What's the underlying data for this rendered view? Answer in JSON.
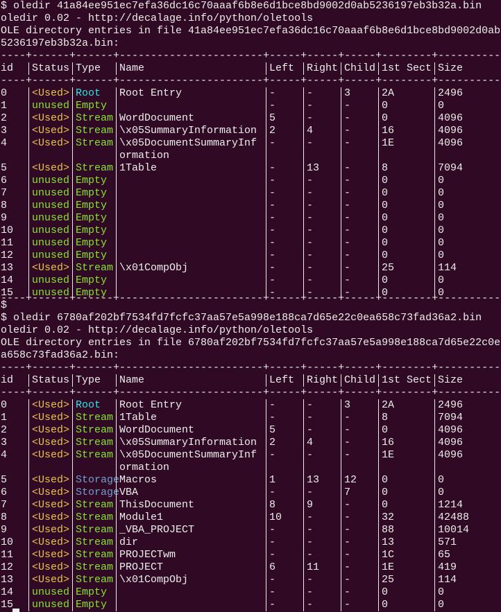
{
  "sessions": [
    {
      "lines": [
        "$ oledir 41a84ee951ec7efa36dc16c70aaaf6b8e6d1bce8bd9002d0ab5236197eb3b32a.bin",
        "oledir 0.02 - http://decalage.info/python/oletools",
        "OLE directory entries in file 41a84ee951ec7efa36dc16c70aaaf6b8e6d1bce8bd9002d0ab",
        "5236197eb3b32a.bin:"
      ],
      "border": "----+------+------+-----------------------+-----+-----+-----+--------+----------",
      "columns": [
        "id",
        "Status",
        "Type",
        "Name",
        "Left",
        "Right",
        "Child",
        "1st Sect",
        "Size"
      ],
      "colors": {
        "status": {
          "<Used>": "#e9c44a",
          "unused": "#8ae234"
        },
        "type": {
          "Root": "#34e2e2",
          "Stream": "#8ae234",
          "Empty": "#8ae234",
          "Storage": "#729fcf"
        }
      },
      "rows": [
        {
          "id": "0",
          "status": "<Used>",
          "type": "Root",
          "name": "Root Entry",
          "left": "-",
          "right": "-",
          "child": "3",
          "sect": "2A",
          "size": "2496"
        },
        {
          "id": "1",
          "status": "unused",
          "type": "Empty",
          "name": null,
          "left": "-",
          "right": "-",
          "child": "-",
          "sect": "0",
          "size": "0"
        },
        {
          "id": "2",
          "status": "<Used>",
          "type": "Stream",
          "name": "WordDocument",
          "left": "5",
          "right": "-",
          "child": "-",
          "sect": "0",
          "size": "4096"
        },
        {
          "id": "3",
          "status": "<Used>",
          "type": "Stream",
          "name": "\\x05SummaryInformation",
          "left": "2",
          "right": "4",
          "child": "-",
          "sect": "16",
          "size": "4096"
        },
        {
          "id": "4",
          "status": "<Used>",
          "type": "Stream",
          "name": "\\x05DocumentSummaryInf",
          "name_cont": "ormation",
          "left": "-",
          "right": "-",
          "child": "-",
          "sect": "1E",
          "size": "4096"
        },
        {
          "id": "5",
          "status": "<Used>",
          "type": "Stream",
          "name": "1Table",
          "left": "-",
          "right": "13",
          "child": "-",
          "sect": "8",
          "size": "7094"
        },
        {
          "id": "6",
          "status": "unused",
          "type": "Empty",
          "name": null,
          "left": "-",
          "right": "-",
          "child": "-",
          "sect": "0",
          "size": "0"
        },
        {
          "id": "7",
          "status": "unused",
          "type": "Empty",
          "name": null,
          "left": "-",
          "right": "-",
          "child": "-",
          "sect": "0",
          "size": "0"
        },
        {
          "id": "8",
          "status": "unused",
          "type": "Empty",
          "name": null,
          "left": "-",
          "right": "-",
          "child": "-",
          "sect": "0",
          "size": "0"
        },
        {
          "id": "9",
          "status": "unused",
          "type": "Empty",
          "name": null,
          "left": "-",
          "right": "-",
          "child": "-",
          "sect": "0",
          "size": "0"
        },
        {
          "id": "10",
          "status": "unused",
          "type": "Empty",
          "name": null,
          "left": "-",
          "right": "-",
          "child": "-",
          "sect": "0",
          "size": "0"
        },
        {
          "id": "11",
          "status": "unused",
          "type": "Empty",
          "name": null,
          "left": "-",
          "right": "-",
          "child": "-",
          "sect": "0",
          "size": "0"
        },
        {
          "id": "12",
          "status": "unused",
          "type": "Empty",
          "name": null,
          "left": "-",
          "right": "-",
          "child": "-",
          "sect": "0",
          "size": "0"
        },
        {
          "id": "13",
          "status": "<Used>",
          "type": "Stream",
          "name": "\\x01CompObj",
          "left": "-",
          "right": "-",
          "child": "-",
          "sect": "25",
          "size": "114"
        },
        {
          "id": "14",
          "status": "unused",
          "type": "Empty",
          "name": null,
          "left": "-",
          "right": "-",
          "child": "-",
          "sect": "0",
          "size": "0"
        },
        {
          "id": "15",
          "status": "unused",
          "type": "Empty",
          "name": null,
          "left": "-",
          "right": "-",
          "child": "-",
          "sect": "0",
          "size": "0"
        }
      ],
      "closing_border": true,
      "trailing": "$"
    },
    {
      "lines": [
        "$ oledir 6780af202bf7534fd7fcfc37aa57e5a998e188ca7d65e22c0ea658c73fad36a2.bin",
        "oledir 0.02 - http://decalage.info/python/oletools",
        "OLE directory entries in file 6780af202bf7534fd7fcfc37aa57e5a998e188ca7d65e22c0e",
        "a658c73fad36a2.bin:"
      ],
      "border": "----+------+------+-----------------------+-----+-----+-----+--------+----------",
      "columns": [
        "id",
        "Status",
        "Type",
        "Name",
        "Left",
        "Right",
        "Child",
        "1st Sect",
        "Size"
      ],
      "colors": {
        "status": {
          "<Used>": "#e9c44a",
          "unused": "#8ae234"
        },
        "type": {
          "Root": "#34e2e2",
          "Stream": "#8ae234",
          "Empty": "#8ae234",
          "Storage": "#729fcf"
        }
      },
      "rows": [
        {
          "id": "0",
          "status": "<Used>",
          "type": "Root",
          "name": "Root Entry",
          "left": "-",
          "right": "-",
          "child": "3",
          "sect": "2A",
          "size": "2496"
        },
        {
          "id": "1",
          "status": "<Used>",
          "type": "Stream",
          "name": "1Table",
          "left": "-",
          "right": "-",
          "child": "-",
          "sect": "8",
          "size": "7094"
        },
        {
          "id": "2",
          "status": "<Used>",
          "type": "Stream",
          "name": "WordDocument",
          "left": "5",
          "right": "-",
          "child": "-",
          "sect": "0",
          "size": "4096"
        },
        {
          "id": "3",
          "status": "<Used>",
          "type": "Stream",
          "name": "\\x05SummaryInformation",
          "left": "2",
          "right": "4",
          "child": "-",
          "sect": "16",
          "size": "4096"
        },
        {
          "id": "4",
          "status": "<Used>",
          "type": "Stream",
          "name": "\\x05DocumentSummaryInf",
          "name_cont": "ormation",
          "left": "-",
          "right": "-",
          "child": "-",
          "sect": "1E",
          "size": "4096"
        },
        {
          "id": "5",
          "status": "<Used>",
          "type": "Storage",
          "name": "Macros",
          "left": "1",
          "right": "13",
          "child": "12",
          "sect": "0",
          "size": "0"
        },
        {
          "id": "6",
          "status": "<Used>",
          "type": "Storage",
          "name": "VBA",
          "left": "-",
          "right": "-",
          "child": "7",
          "sect": "0",
          "size": "0"
        },
        {
          "id": "7",
          "status": "<Used>",
          "type": "Stream",
          "name": "ThisDocument",
          "left": "8",
          "right": "9",
          "child": "-",
          "sect": "0",
          "size": "1214"
        },
        {
          "id": "8",
          "status": "<Used>",
          "type": "Stream",
          "name": "Module1",
          "left": "10",
          "right": "-",
          "child": "-",
          "sect": "32",
          "size": "42488"
        },
        {
          "id": "9",
          "status": "<Used>",
          "type": "Stream",
          "name": "_VBA_PROJECT",
          "left": "-",
          "right": "-",
          "child": "-",
          "sect": "88",
          "size": "10014"
        },
        {
          "id": "10",
          "status": "<Used>",
          "type": "Stream",
          "name": "dir",
          "left": "-",
          "right": "-",
          "child": "-",
          "sect": "13",
          "size": "571"
        },
        {
          "id": "11",
          "status": "<Used>",
          "type": "Stream",
          "name": "PROJECTwm",
          "left": "-",
          "right": "-",
          "child": "-",
          "sect": "1C",
          "size": "65"
        },
        {
          "id": "12",
          "status": "<Used>",
          "type": "Stream",
          "name": "PROJECT",
          "left": "6",
          "right": "11",
          "child": "-",
          "sect": "1E",
          "size": "419"
        },
        {
          "id": "13",
          "status": "<Used>",
          "type": "Stream",
          "name": "\\x01CompObj",
          "left": "-",
          "right": "-",
          "child": "-",
          "sect": "25",
          "size": "114"
        },
        {
          "id": "14",
          "status": "unused",
          "type": "Empty",
          "name": null,
          "left": "-",
          "right": "-",
          "child": "-",
          "sect": "0",
          "size": "0"
        },
        {
          "id": "15",
          "status": "unused",
          "type": "Empty",
          "name": null,
          "left": "-",
          "right": "-",
          "child": "-",
          "sect": "0",
          "size": "0"
        }
      ]
    }
  ]
}
